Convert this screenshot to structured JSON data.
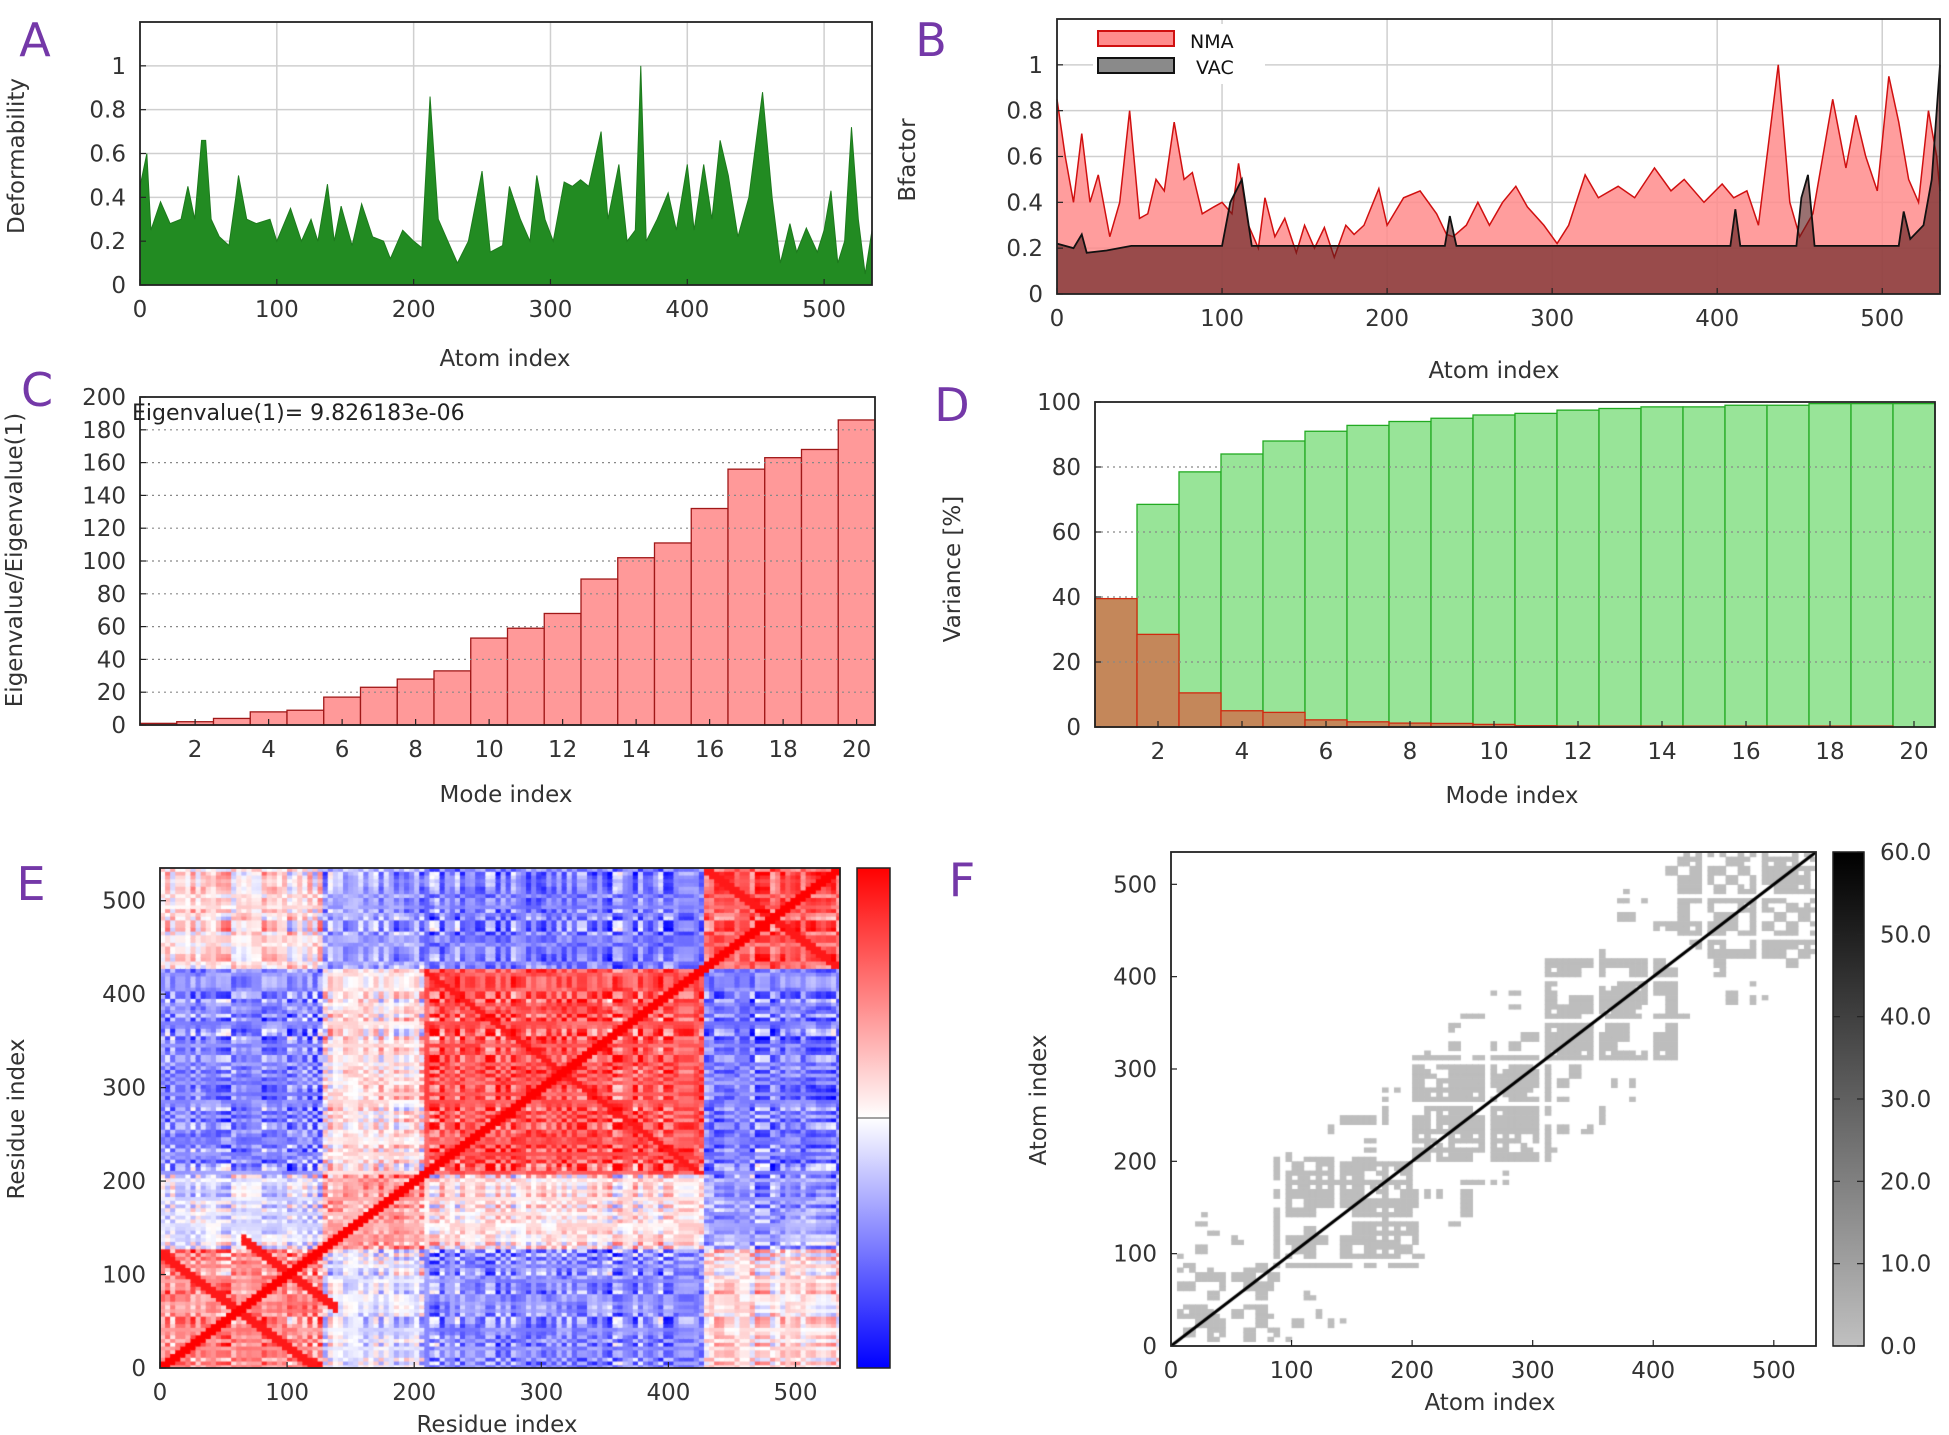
{
  "chart_data": [
    {
      "label": "A",
      "type": "area",
      "xlabel": "Atom index",
      "ylabel": "Deformability",
      "xlim": [
        0,
        535
      ],
      "ylim": [
        0,
        1.2
      ],
      "xticks": [
        0,
        100,
        200,
        300,
        400,
        500
      ],
      "yticks": [
        0,
        0.2,
        0.4,
        0.6,
        0.8,
        1
      ],
      "yticklabels": [
        "0",
        "0.2",
        "0.4",
        "0.6",
        "0.8",
        "1"
      ],
      "grid": true,
      "color": "#228b22",
      "x": [
        0,
        5,
        8,
        15,
        22,
        30,
        35,
        40,
        45,
        48,
        52,
        58,
        65,
        70,
        72,
        78,
        85,
        95,
        100,
        110,
        118,
        125,
        130,
        137,
        142,
        147,
        155,
        162,
        170,
        178,
        183,
        192,
        200,
        206,
        212,
        218,
        225,
        232,
        240,
        250,
        256,
        265,
        270,
        278,
        285,
        290,
        296,
        302,
        310,
        316,
        322,
        328,
        337,
        342,
        350,
        356,
        362,
        366,
        370,
        378,
        386,
        392,
        400,
        405,
        412,
        418,
        424,
        430,
        437,
        445,
        455,
        462,
        468,
        475,
        480,
        487,
        495,
        500,
        505,
        510,
        515,
        520,
        525,
        530,
        535
      ],
      "y": [
        0.45,
        0.6,
        0.25,
        0.38,
        0.28,
        0.3,
        0.45,
        0.3,
        0.66,
        0.66,
        0.3,
        0.22,
        0.18,
        0.4,
        0.5,
        0.3,
        0.28,
        0.3,
        0.2,
        0.35,
        0.2,
        0.3,
        0.2,
        0.46,
        0.2,
        0.36,
        0.18,
        0.37,
        0.22,
        0.2,
        0.12,
        0.25,
        0.2,
        0.17,
        0.86,
        0.3,
        0.2,
        0.1,
        0.2,
        0.52,
        0.15,
        0.18,
        0.45,
        0.3,
        0.2,
        0.5,
        0.3,
        0.2,
        0.47,
        0.45,
        0.48,
        0.45,
        0.7,
        0.3,
        0.55,
        0.2,
        0.25,
        1.0,
        0.2,
        0.3,
        0.42,
        0.25,
        0.55,
        0.25,
        0.55,
        0.3,
        0.66,
        0.5,
        0.22,
        0.4,
        0.88,
        0.4,
        0.1,
        0.28,
        0.15,
        0.26,
        0.15,
        0.25,
        0.43,
        0.1,
        0.2,
        0.72,
        0.3,
        0.05,
        0.25
      ]
    },
    {
      "label": "B",
      "type": "area",
      "xlabel": "Atom index",
      "ylabel": "Bfactor",
      "xlim": [
        0,
        535
      ],
      "ylim": [
        0,
        1.2
      ],
      "xticks": [
        0,
        100,
        200,
        300,
        400,
        500
      ],
      "yticks": [
        0,
        0.2,
        0.4,
        0.6,
        0.8,
        1
      ],
      "yticklabels": [
        "0",
        "0.2",
        "0.4",
        "0.6",
        "0.8",
        "1"
      ],
      "grid": true,
      "legend": "top-left",
      "series": [
        {
          "name": "NMA",
          "color": "#ff8c8c",
          "x": [
            0,
            5,
            10,
            15,
            20,
            25,
            32,
            38,
            44,
            50,
            55,
            60,
            65,
            71,
            77,
            82,
            88,
            95,
            100,
            106,
            110,
            116,
            122,
            126,
            132,
            138,
            145,
            150,
            156,
            162,
            168,
            175,
            180,
            186,
            195,
            200,
            210,
            220,
            230,
            236,
            240,
            248,
            255,
            262,
            270,
            278,
            285,
            295,
            303,
            310,
            320,
            328,
            340,
            350,
            362,
            372,
            380,
            392,
            403,
            410,
            418,
            425,
            437,
            444,
            450,
            458,
            470,
            478,
            484,
            490,
            497,
            504,
            510,
            516,
            522,
            528,
            533,
            535
          ],
          "y": [
            0.85,
            0.6,
            0.4,
            0.7,
            0.4,
            0.52,
            0.25,
            0.4,
            0.8,
            0.33,
            0.35,
            0.5,
            0.45,
            0.75,
            0.5,
            0.53,
            0.35,
            0.38,
            0.4,
            0.35,
            0.57,
            0.3,
            0.2,
            0.42,
            0.25,
            0.33,
            0.18,
            0.3,
            0.2,
            0.29,
            0.16,
            0.3,
            0.26,
            0.3,
            0.46,
            0.3,
            0.42,
            0.45,
            0.35,
            0.26,
            0.25,
            0.3,
            0.4,
            0.3,
            0.4,
            0.47,
            0.38,
            0.3,
            0.22,
            0.3,
            0.52,
            0.42,
            0.47,
            0.42,
            0.55,
            0.45,
            0.5,
            0.4,
            0.48,
            0.42,
            0.45,
            0.3,
            1.0,
            0.4,
            0.25,
            0.35,
            0.85,
            0.55,
            0.78,
            0.6,
            0.45,
            0.95,
            0.75,
            0.5,
            0.4,
            0.8,
            0.6,
            0.45
          ]
        },
        {
          "name": "VAC",
          "color": "#555555",
          "x": [
            0,
            10,
            15,
            18,
            30,
            45,
            100,
            105,
            112,
            118,
            235,
            238,
            242,
            408,
            411,
            414,
            448,
            451,
            455,
            459,
            510,
            513,
            517,
            525,
            530,
            535
          ],
          "y": [
            0.22,
            0.2,
            0.26,
            0.18,
            0.19,
            0.21,
            0.21,
            0.4,
            0.5,
            0.21,
            0.21,
            0.34,
            0.21,
            0.21,
            0.37,
            0.21,
            0.21,
            0.42,
            0.52,
            0.21,
            0.21,
            0.36,
            0.24,
            0.3,
            0.5,
            1.0
          ]
        }
      ]
    },
    {
      "label": "C",
      "type": "bar",
      "annotation": "Eigenvalue(1)= 9.826183e-06",
      "xlabel": "Mode index",
      "ylabel": "Eigenvalue/Eigenvalue(1)",
      "xlim": [
        0.5,
        20.5
      ],
      "ylim": [
        0,
        200
      ],
      "categories": [
        1,
        2,
        3,
        4,
        5,
        6,
        7,
        8,
        9,
        10,
        11,
        12,
        13,
        14,
        15,
        16,
        17,
        18,
        19,
        20
      ],
      "values": [
        1,
        2,
        4,
        8,
        9,
        17,
        23,
        28,
        33,
        53,
        59,
        68,
        89,
        102,
        111,
        132,
        156,
        163,
        168,
        186
      ],
      "xticks": [
        2,
        4,
        6,
        8,
        10,
        12,
        14,
        16,
        18,
        20
      ],
      "yticks": [
        0,
        20,
        40,
        60,
        80,
        100,
        120,
        140,
        160,
        180,
        200
      ],
      "yticklabels": [
        "0",
        "20",
        "40",
        "60",
        "80",
        "100",
        "120",
        "140",
        "160",
        "180",
        "200"
      ],
      "grid": "horizontal-dotted",
      "color": "#ff9999"
    },
    {
      "label": "D",
      "type": "bar",
      "xlabel": "Mode index",
      "ylabel": "Variance [%]",
      "xlim": [
        0.5,
        20.5
      ],
      "ylim": [
        0,
        100
      ],
      "categories": [
        1,
        2,
        3,
        4,
        5,
        6,
        7,
        8,
        9,
        10,
        11,
        12,
        13,
        14,
        15,
        16,
        17,
        18,
        19,
        20
      ],
      "series": [
        {
          "color": "#98e498",
          "values": [
            39.5,
            68.5,
            78.5,
            84,
            88,
            91,
            92.8,
            94,
            95,
            96,
            96.5,
            97.5,
            98,
            98.5,
            98.5,
            99,
            99,
            99.5,
            99.5,
            99.5
          ]
        },
        {
          "color": "#c4875a",
          "values": [
            39.5,
            28.5,
            10.5,
            5,
            4.5,
            2.2,
            1.6,
            1.2,
            1.1,
            0.8,
            0.4,
            0.3,
            0.3,
            0.3,
            0.3,
            0.3,
            0.3,
            0.3,
            0.3,
            0
          ]
        }
      ],
      "xticks": [
        2,
        4,
        6,
        8,
        10,
        12,
        14,
        16,
        18,
        20
      ],
      "yticks": [
        0,
        20,
        40,
        60,
        80,
        100
      ],
      "yticklabels": [
        "0",
        "20",
        "40",
        "60",
        "80",
        "100"
      ],
      "grid": "horizontal-dotted"
    },
    {
      "label": "E",
      "type": "heatmap",
      "xlabel": "Residue index",
      "ylabel": "Residue index",
      "xlim": [
        0,
        535
      ],
      "ylim": [
        0,
        535
      ],
      "xticks": [
        0,
        100,
        200,
        300,
        400,
        500
      ],
      "yticks": [
        0,
        100,
        200,
        300,
        400,
        500
      ],
      "yticklabels": [
        "0",
        "100",
        "200",
        "300",
        "400",
        "500"
      ],
      "colorscale": [
        "#0000ff",
        "#ffffff",
        "#ff0000"
      ]
    },
    {
      "label": "F",
      "type": "heatmap",
      "xlabel": "Atom index",
      "ylabel": "Atom index",
      "xlim": [
        0,
        535
      ],
      "ylim": [
        0,
        535
      ],
      "xticks": [
        0,
        100,
        200,
        300,
        400,
        500
      ],
      "yticks": [
        0,
        100,
        200,
        300,
        400,
        500
      ],
      "yticklabels": [
        "0",
        "100",
        "200",
        "300",
        "400",
        "500"
      ],
      "colorscale": [
        "#c0c0c0",
        "#000000"
      ],
      "colorbar_range": [
        0,
        60
      ],
      "colorbar_ticks": [
        0,
        10,
        20,
        30,
        40,
        50,
        60
      ],
      "colorbar_ticklabels": [
        "0.0",
        "10.0",
        "20.0",
        "30.0",
        "40.0",
        "50.0",
        "60.0"
      ]
    }
  ]
}
